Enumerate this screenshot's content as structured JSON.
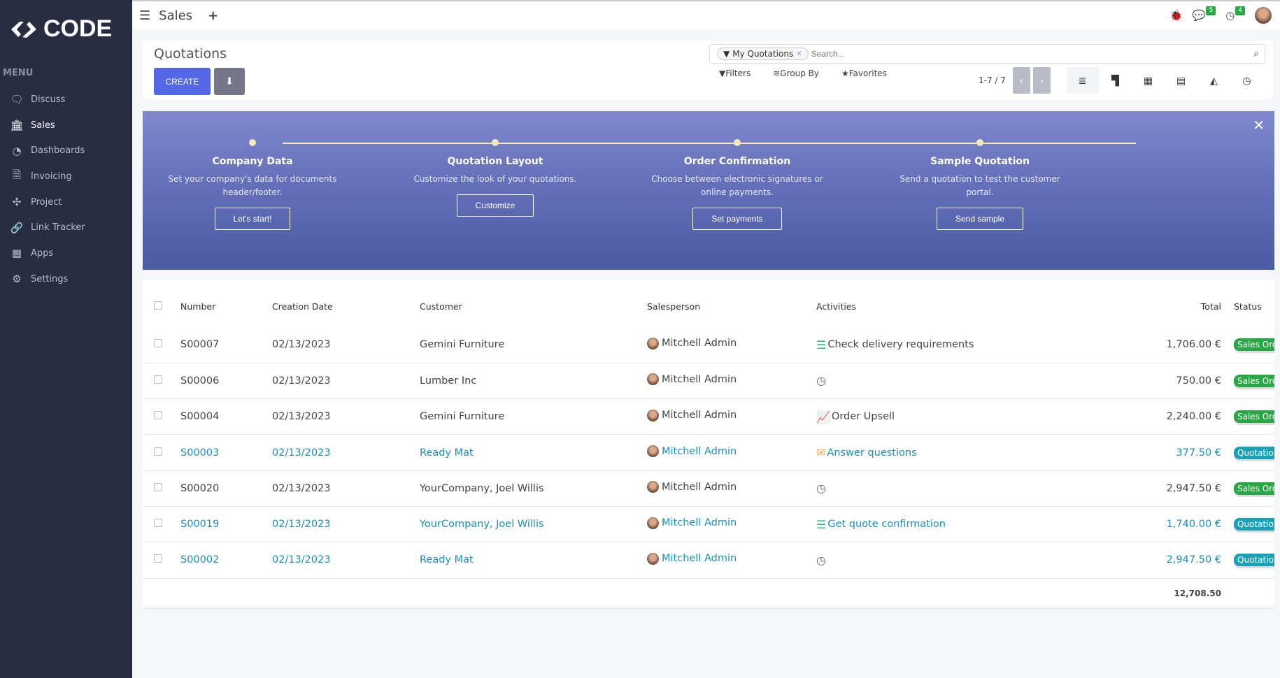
{
  "brand": {
    "name": "CODE"
  },
  "sidebar": {
    "menu_title": "MENU",
    "items": [
      {
        "label": "Discuss",
        "icon": "chat-icon"
      },
      {
        "label": "Sales",
        "icon": "bank-icon",
        "active": true
      },
      {
        "label": "Dashboards",
        "icon": "gauge-icon"
      },
      {
        "label": "Invoicing",
        "icon": "invoice-icon"
      },
      {
        "label": "Project",
        "icon": "puzzle-icon"
      },
      {
        "label": "Link Tracker",
        "icon": "link-icon"
      },
      {
        "label": "Apps",
        "icon": "grid-icon"
      },
      {
        "label": "Settings",
        "icon": "gear-icon"
      }
    ]
  },
  "topbar": {
    "app": "Sales",
    "messages_count": "5",
    "activities_count": "4"
  },
  "control": {
    "title": "Quotations",
    "create": "CREATE",
    "facet": "My Quotations",
    "search_placeholder": "Search...",
    "filters": "Filters",
    "group_by": "Group By",
    "favorites": "Favorites",
    "pager": "1-7 / 7"
  },
  "banner": {
    "steps": [
      {
        "title": "Company Data",
        "desc": "Set your company's data for documents header/footer.",
        "button": "Let's start!"
      },
      {
        "title": "Quotation Layout",
        "desc": "Customize the look of your quotations.",
        "button": "Customize"
      },
      {
        "title": "Order Confirmation",
        "desc": "Choose between electronic signatures or online payments.",
        "button": "Set payments"
      },
      {
        "title": "Sample Quotation",
        "desc": "Send a quotation to test the customer portal.",
        "button": "Send sample"
      }
    ]
  },
  "table": {
    "columns": {
      "number": "Number",
      "date": "Creation Date",
      "customer": "Customer",
      "salesperson": "Salesperson",
      "activities": "Activities",
      "total": "Total",
      "status": "Status"
    },
    "rows": [
      {
        "number": "S00007",
        "date": "02/13/2023",
        "customer": "Gemini Furniture",
        "salesperson": "Mitchell Admin",
        "activity": "Check delivery requirements",
        "activity_icon": "tasks-icon",
        "total": "1,706.00 €",
        "status": "Sales Order",
        "status_kind": "so",
        "link": false
      },
      {
        "number": "S00006",
        "date": "02/13/2023",
        "customer": "Lumber Inc",
        "salesperson": "Mitchell Admin",
        "activity": "",
        "activity_icon": "clock-icon",
        "total": "750.00 €",
        "status": "Sales Order",
        "status_kind": "so",
        "link": false
      },
      {
        "number": "S00004",
        "date": "02/13/2023",
        "customer": "Gemini Furniture",
        "salesperson": "Mitchell Admin",
        "activity": "Order Upsell",
        "activity_icon": "chart-line-icon",
        "total": "2,240.00 €",
        "status": "Sales Order",
        "status_kind": "so",
        "link": false
      },
      {
        "number": "S00003",
        "date": "02/13/2023",
        "customer": "Ready Mat",
        "salesperson": "Mitchell Admin",
        "activity": "Answer questions",
        "activity_icon": "envelope-icon",
        "total": "377.50 €",
        "status": "Quotation",
        "status_kind": "qt",
        "link": true
      },
      {
        "number": "S00020",
        "date": "02/13/2023",
        "customer": "YourCompany, Joel Willis",
        "salesperson": "Mitchell Admin",
        "activity": "",
        "activity_icon": "clock-icon",
        "total": "2,947.50 €",
        "status": "Sales Order",
        "status_kind": "so",
        "link": false
      },
      {
        "number": "S00019",
        "date": "02/13/2023",
        "customer": "YourCompany, Joel Willis",
        "salesperson": "Mitchell Admin",
        "activity": "Get quote confirmation",
        "activity_icon": "tasks-icon",
        "total": "1,740.00 €",
        "status": "Quotation",
        "status_kind": "qt",
        "link": true
      },
      {
        "number": "S00002",
        "date": "02/13/2023",
        "customer": "Ready Mat",
        "salesperson": "Mitchell Admin",
        "activity": "",
        "activity_icon": "clock-icon",
        "total": "2,947.50 €",
        "status": "Quotation",
        "status_kind": "qt",
        "link": true
      }
    ],
    "grand_total": "12,708.50"
  }
}
